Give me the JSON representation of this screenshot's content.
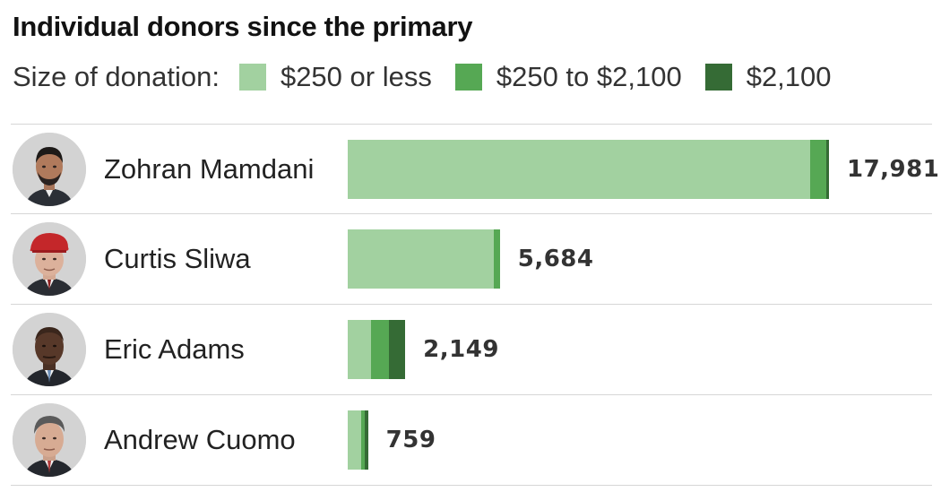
{
  "title": "Individual donors since the primary",
  "legend": {
    "label": "Size of donation:",
    "items": [
      {
        "label": "$250 or less",
        "color": "#a2d1a0"
      },
      {
        "label": "$250 to $2,100",
        "color": "#56a854"
      },
      {
        "label": "$2,100",
        "color": "#356b35"
      }
    ]
  },
  "chart_data": {
    "type": "bar",
    "orientation": "horizontal",
    "stacked": true,
    "title": "Individual donors since the primary",
    "categories": [
      "Zohran Mamdani",
      "Curtis Sliwa",
      "Eric Adams",
      "Andrew Cuomo"
    ],
    "series": [
      {
        "name": "$250 or less",
        "color": "#a2d1a0",
        "values": [
          17270,
          5450,
          880,
          505
        ]
      },
      {
        "name": "$250 to $2,100",
        "color": "#56a854",
        "values": [
          605,
          234,
          670,
          144
        ]
      },
      {
        "name": "$2,100",
        "color": "#356b35",
        "values": [
          106,
          0,
          599,
          110
        ]
      }
    ],
    "totals": [
      17981,
      5684,
      2149,
      759
    ],
    "value_labels": [
      "17,981",
      "5,684",
      "2,149",
      "759"
    ],
    "grid": false,
    "legend_position": "top"
  },
  "rows": [
    {
      "icon": "mamdani-portrait-icon"
    },
    {
      "icon": "sliwa-portrait-icon"
    },
    {
      "icon": "adams-portrait-icon"
    },
    {
      "icon": "cuomo-portrait-icon"
    }
  ]
}
